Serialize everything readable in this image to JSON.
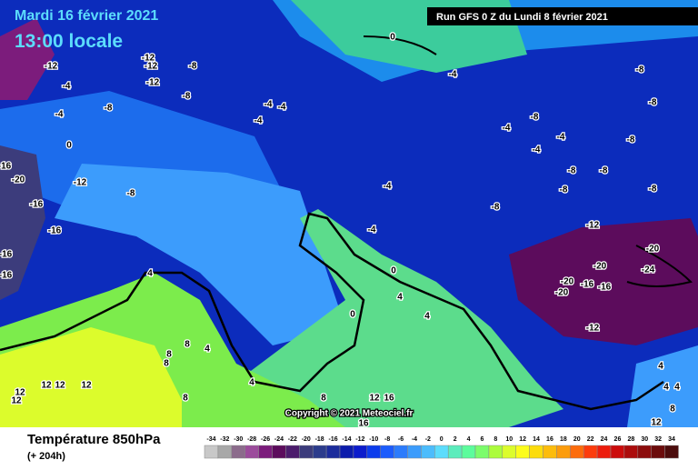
{
  "header": {
    "date": "Mardi 16 février 2021",
    "time": "13:00 locale",
    "run": "Run GFS 0 Z du Lundi 8 février 2021"
  },
  "map": {
    "copyright": "Copyright © 2021 Meteociel.fr",
    "contour_labels": [
      -12,
      -12,
      -8,
      -12,
      -12,
      -4,
      -8,
      -8,
      -4,
      -4,
      -4,
      -4,
      0,
      -4,
      -8,
      -8,
      -8,
      -4,
      -4,
      -8,
      -4,
      -8,
      -8,
      -8,
      -8,
      -8,
      -4,
      -4,
      -12,
      -20,
      -20,
      -24,
      -20,
      -20,
      -16,
      -16,
      -12,
      -20,
      -16,
      -16,
      -16,
      -16,
      -12,
      -8,
      -16,
      0,
      4,
      4,
      4,
      0,
      8,
      4,
      8,
      8,
      8,
      4,
      8,
      12,
      16,
      16,
      12,
      12,
      12,
      12,
      12,
      4,
      4,
      4,
      12,
      8,
      0
    ]
  },
  "legend": {
    "title": "Température 850hPa",
    "lead": "(+ 204h)",
    "scale": [
      -34,
      -32,
      -30,
      -28,
      -26,
      -24,
      -22,
      -20,
      -18,
      -16,
      -14,
      -12,
      -10,
      -8,
      -6,
      -4,
      -2,
      0,
      2,
      4,
      6,
      8,
      10,
      12,
      14,
      16,
      18,
      20,
      22,
      24,
      26,
      28,
      30,
      32,
      34
    ],
    "colors": [
      "#c8c8c8",
      "#a8a8a8",
      "#8c6c8c",
      "#9c4c9c",
      "#7c1c7c",
      "#5c0c5c",
      "#4c1c6c",
      "#3c3c7c",
      "#2c3c8c",
      "#1c2c9c",
      "#0c1cac",
      "#0c1ccc",
      "#0c3cec",
      "#1c5cfc",
      "#2c7cfc",
      "#3c9cfc",
      "#4cbcfc",
      "#5cdcfc",
      "#5cecbc",
      "#5cfc9c",
      "#7cfc6c",
      "#acfc3c",
      "#dcfc2c",
      "#fcfc1c",
      "#fcdc0c",
      "#fcbc0c",
      "#fc9c0c",
      "#fc6c0c",
      "#fc3c0c",
      "#ec1c0c",
      "#cc0c0c",
      "#ac0c0c",
      "#8c0c0c",
      "#6c0c0c",
      "#4c0c0c"
    ]
  }
}
